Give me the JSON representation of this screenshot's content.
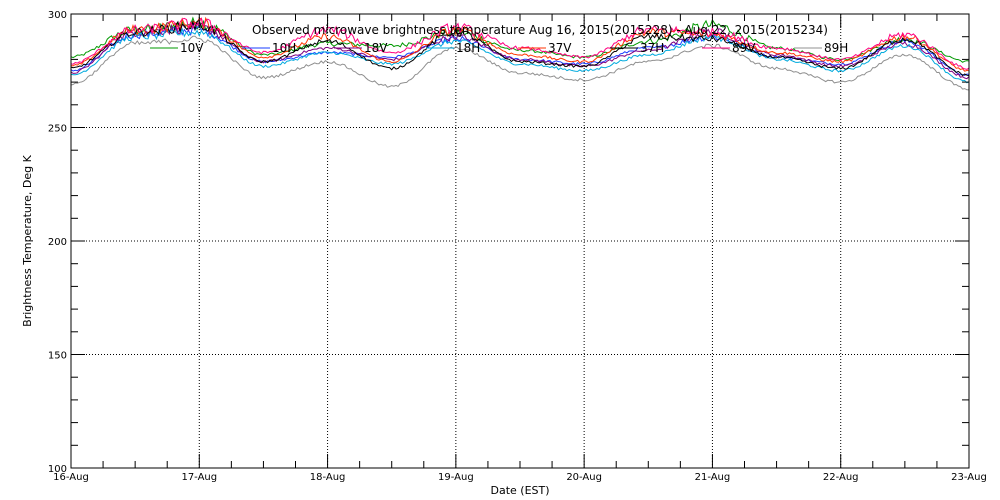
{
  "chart_data": {
    "type": "line",
    "title": "Observed microwave brightness temperature Aug 16, 2015(2015228) - Aug 22, 2015(2015234)",
    "xlabel": "Date (EST)",
    "ylabel": "Brightness Temperature, Deg K",
    "ylim": [
      100,
      300
    ],
    "xlim": [
      "2015-08-16",
      "2015-08-23"
    ],
    "x_ticks": [
      "16-Aug",
      "17-Aug",
      "18-Aug",
      "19-Aug",
      "20-Aug",
      "21-Aug",
      "22-Aug",
      "23-Aug"
    ],
    "y_ticks": [
      100,
      150,
      200,
      250,
      300
    ],
    "grid": true,
    "legend_position": "top, inside plot",
    "series": [
      {
        "name": "10V",
        "color": "#009900",
        "values": [
          281,
          293,
          296,
          282,
          287,
          286,
          292,
          284,
          281,
          288,
          295,
          285,
          280,
          289,
          279
        ]
      },
      {
        "name": "10H",
        "color": "#1a3cff",
        "values": [
          275,
          291,
          293,
          279,
          283,
          281,
          289,
          280,
          278,
          285,
          290,
          281,
          278,
          288,
          273
        ]
      },
      {
        "name": "18V",
        "color": "#800080",
        "values": [
          274,
          292,
          294,
          279,
          285,
          280,
          290,
          280,
          277,
          284,
          292,
          282,
          277,
          287,
          272
        ]
      },
      {
        "name": "18H",
        "color": "#00aadd",
        "values": [
          273,
          290,
          292,
          277,
          283,
          278,
          288,
          278,
          275,
          282,
          290,
          280,
          275,
          286,
          270
        ]
      },
      {
        "name": "37V",
        "color": "#ff3300",
        "values": [
          277,
          293,
          296,
          281,
          290,
          279,
          293,
          282,
          279,
          292,
          291,
          283,
          279,
          290,
          275
        ]
      },
      {
        "name": "37H",
        "color": "#000000",
        "values": [
          276,
          292,
          295,
          279,
          288,
          276,
          292,
          279,
          277,
          290,
          289,
          281,
          276,
          289,
          273
        ]
      },
      {
        "name": "89V",
        "color": "#ff0080",
        "values": [
          278,
          293,
          296,
          283,
          293,
          283,
          294,
          285,
          281,
          293,
          292,
          285,
          280,
          291,
          276
        ]
      },
      {
        "name": "89H",
        "color": "#909090",
        "values": [
          269,
          287,
          289,
          272,
          279,
          268,
          285,
          274,
          271,
          279,
          286,
          276,
          270,
          282,
          267
        ]
      }
    ]
  }
}
